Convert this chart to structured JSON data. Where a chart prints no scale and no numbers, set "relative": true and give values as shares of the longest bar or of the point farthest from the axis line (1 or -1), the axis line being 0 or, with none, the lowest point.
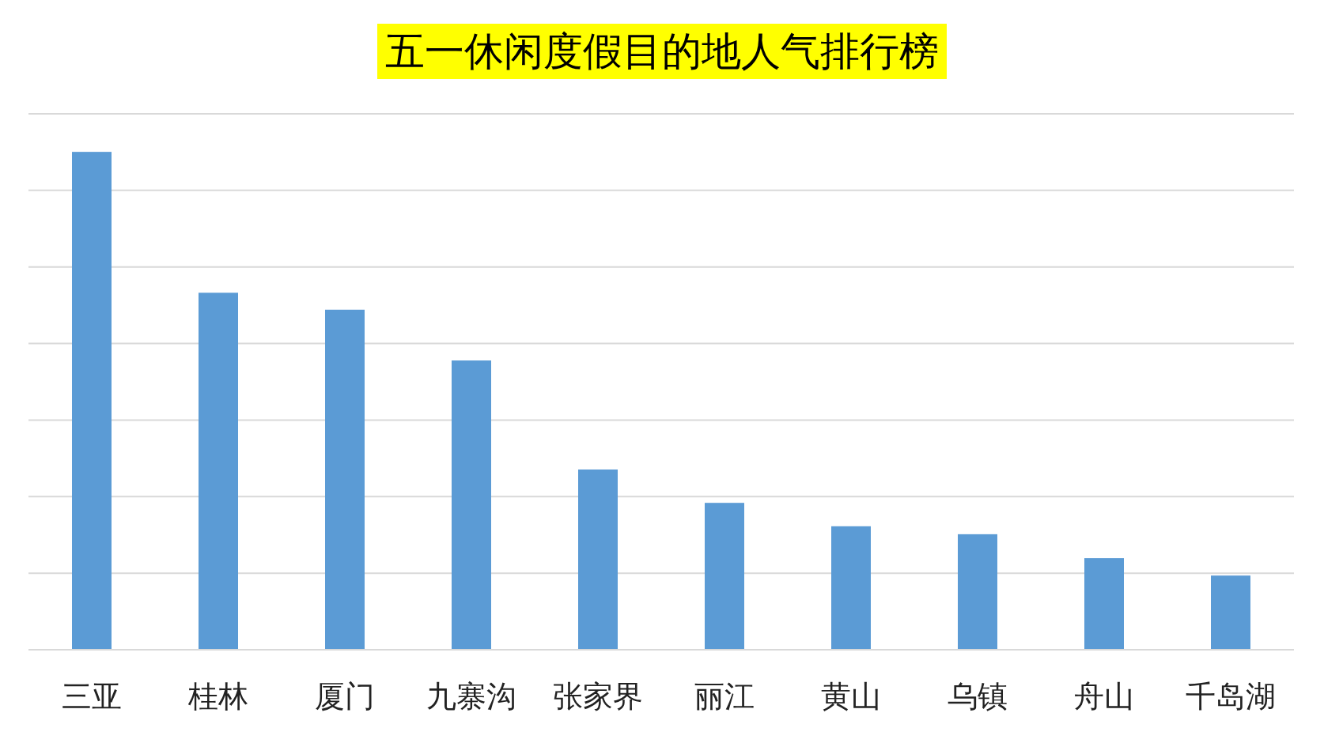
{
  "chart_data": {
    "type": "bar",
    "title": "五一休闲度假目的地人气排行榜",
    "categories": [
      "三亚",
      "桂林",
      "厦门",
      "九寨沟",
      "张家界",
      "丽江",
      "黄山",
      "乌镇",
      "舟山",
      "千岛湖"
    ],
    "values": [
      1,
      0.717,
      0.683,
      0.581,
      0.362,
      0.295,
      0.248,
      0.232,
      0.184,
      0.149
    ],
    "color": "#5b9bd5",
    "relative": true,
    "grid": "y"
  }
}
